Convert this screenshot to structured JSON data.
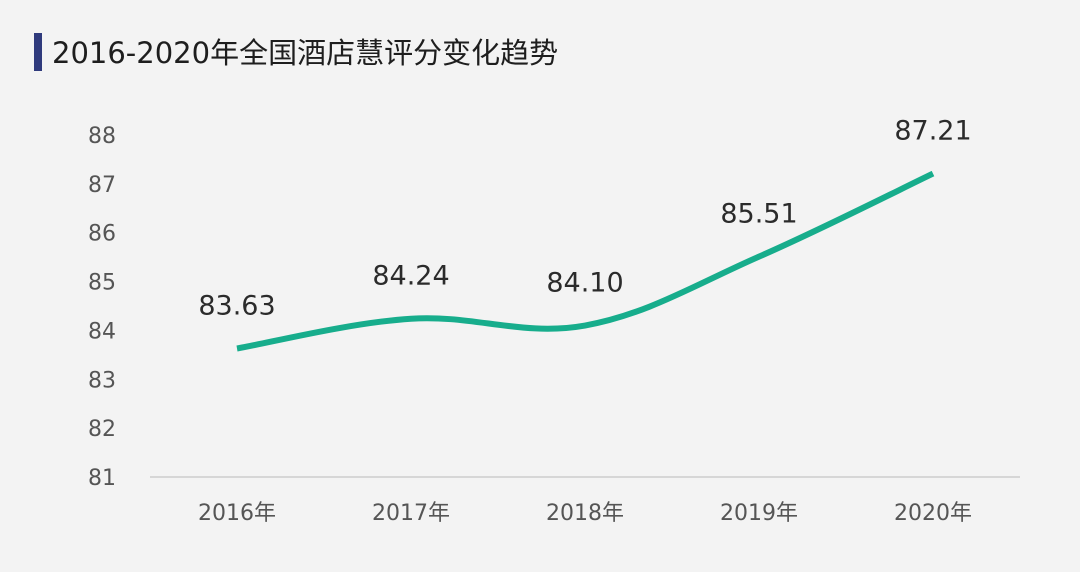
{
  "chart_data": {
    "type": "line",
    "title": "2016-2020年全国酒店慧评分变化趋势",
    "categories": [
      "2016年",
      "2017年",
      "2018年",
      "2019年",
      "2020年"
    ],
    "series": [
      {
        "values": [
          83.63,
          84.24,
          84.1,
          85.51,
          87.21
        ],
        "data_labels": [
          "83.63",
          "84.24",
          "84.10",
          "85.51",
          "87.21"
        ]
      }
    ],
    "y_ticks": [
      "81",
      "82",
      "83",
      "84",
      "85",
      "86",
      "87",
      "88"
    ],
    "ylim": [
      81,
      88
    ],
    "grid": false,
    "legend": "none",
    "colors": {
      "line": "#17ad8c",
      "title_bar": "#2f3a7c",
      "background": "#f3f3f3",
      "axis": "#cccccc"
    }
  }
}
